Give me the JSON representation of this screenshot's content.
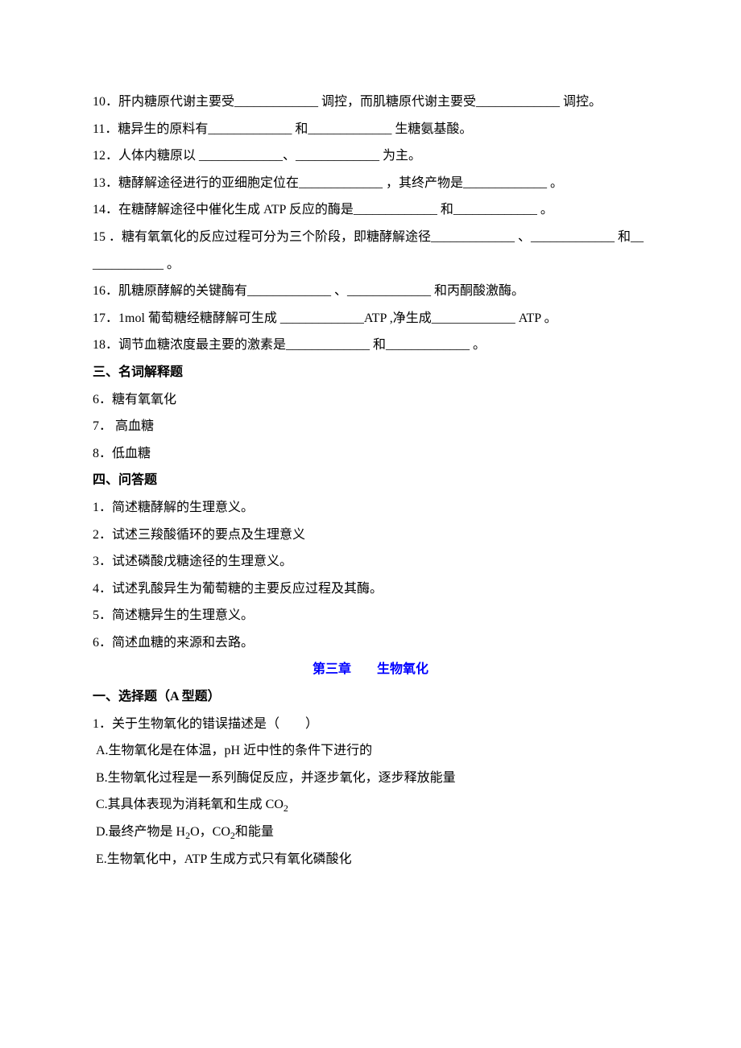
{
  "lines": [
    {
      "text": "10．肝内糖原代谢主要受_____________ 调控，而肌糖原代谢主要受_____________ 调控。"
    },
    {
      "text": "11．糖异生的原料有_____________ 和_____________ 生糖氨基酸。"
    },
    {
      "text": "12．人体内糖原以 _____________、_____________ 为主。"
    },
    {
      "text": "13．糖酵解途径进行的亚细胞定位在_____________ ，其终产物是_____________ 。"
    },
    {
      "text": "14．在糖酵解途径中催化生成 ATP 反应的酶是_____________ 和_____________ 。"
    },
    {
      "text": "15 ．糖有氧氧化的反应过程可分为三个阶段，即糖酵解途径_____________ 、_____________ 和_____________ 。"
    },
    {
      "text": "16．肌糖原酵解的关键酶有_____________ 、_____________ 和丙酮酸激酶。"
    },
    {
      "text": "17．1mol 葡萄糖经糖酵解可生成 _____________ATP ,净生成_____________ ATP 。"
    },
    {
      "text": "18．调节血糖浓度最主要的激素是_____________ 和_____________ 。"
    },
    {
      "text": "三、名词解释题",
      "heading": true
    },
    {
      "text": "6．糖有氧氧化"
    },
    {
      "text": "7． 高血糖"
    },
    {
      "text": "8．低血糖"
    },
    {
      "text": "四、问答题",
      "heading": true
    },
    {
      "text": "1．简述糖酵解的生理意义。"
    },
    {
      "text": "2．试述三羧酸循环的要点及生理意义"
    },
    {
      "text": "3．试述磷酸戊糖途径的生理意义。"
    },
    {
      "text": "4．试述乳酸异生为葡萄糖的主要反应过程及其酶。"
    },
    {
      "text": "5．简述糖异生的生理意义。"
    },
    {
      "text": "6．简述血糖的来源和去路。"
    }
  ],
  "chapter": {
    "left": "第三章",
    "right": "生物氧化"
  },
  "after_chapter": [
    {
      "text": "一、选择题（A 型题）",
      "heading": true
    },
    {
      "text": "1．关于生物氧化的错误描述是（　　）"
    }
  ],
  "options": {
    "A": "A.生物氧化是在体温，pH 近中性的条件下进行的",
    "B": "B.生物氧化过程是一系列酶促反应，并逐步氧化，逐步释放能量",
    "C_pre": "C.其具体表现为消耗氧和生成 CO",
    "C_sub": "2",
    "D_pre": "D.最终产物是 H",
    "D_sub1": "2",
    "D_mid": "O，CO",
    "D_sub2": "2",
    "D_post": "和能量",
    "E": "E.生物氧化中，ATP 生成方式只有氧化磷酸化"
  }
}
